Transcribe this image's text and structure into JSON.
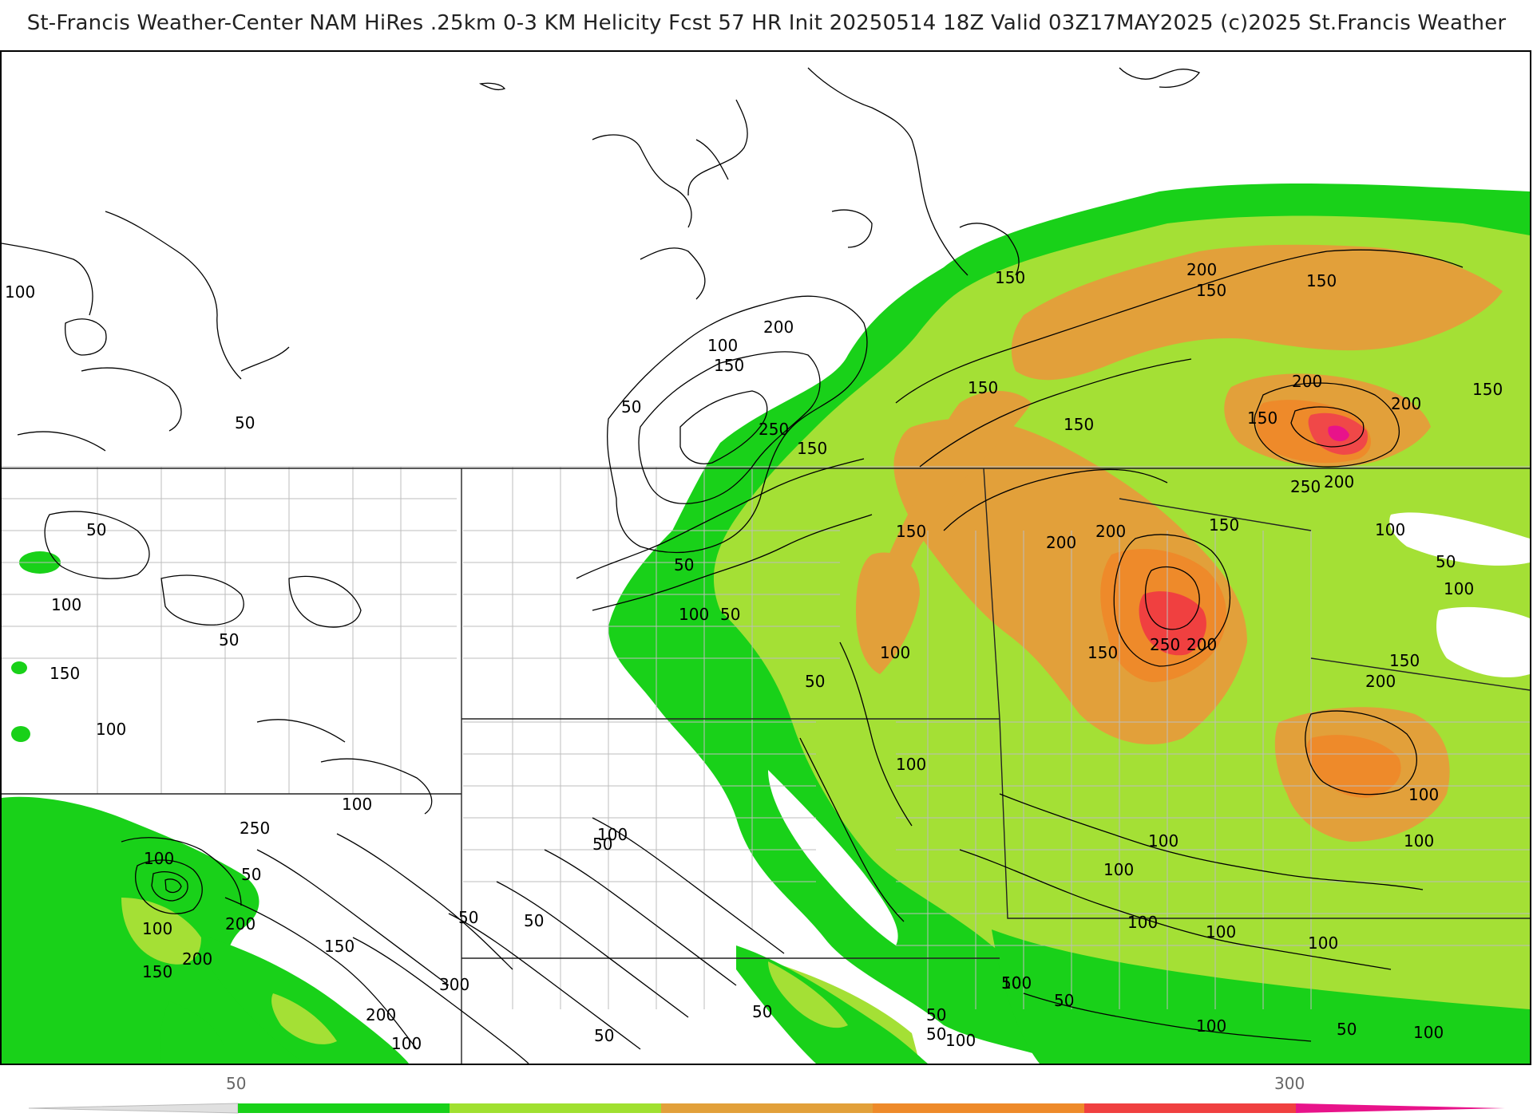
{
  "header": {
    "title": "St-Francis Weather-Center NAM HiRes .25km 0-3 KM Helicity Fcst 57 HR Init 20250514 18Z  Valid 03Z17MAY2025     (c)2025 St.Francis Weather"
  },
  "map": {
    "variable": "0-3 KM Helicity",
    "contour_labels": [
      {
        "id": "l01",
        "text": "100"
      },
      {
        "id": "l02",
        "text": "50"
      },
      {
        "id": "l03",
        "text": "100"
      },
      {
        "id": "l04",
        "text": "200"
      },
      {
        "id": "l05",
        "text": "150"
      },
      {
        "id": "l06",
        "text": "50"
      },
      {
        "id": "l07",
        "text": "250"
      },
      {
        "id": "l08",
        "text": "150"
      },
      {
        "id": "l09",
        "text": "150"
      },
      {
        "id": "l10",
        "text": "200"
      },
      {
        "id": "l11",
        "text": "150"
      },
      {
        "id": "l12",
        "text": "150"
      },
      {
        "id": "l13",
        "text": "150"
      },
      {
        "id": "l14",
        "text": "150"
      },
      {
        "id": "l15",
        "text": "200"
      },
      {
        "id": "l16",
        "text": "150"
      },
      {
        "id": "l17",
        "text": "200"
      },
      {
        "id": "l18",
        "text": "150"
      },
      {
        "id": "l19",
        "text": "250"
      },
      {
        "id": "l20",
        "text": "200"
      },
      {
        "id": "l21",
        "text": "150"
      },
      {
        "id": "l22",
        "text": "200"
      },
      {
        "id": "l23",
        "text": "150"
      },
      {
        "id": "l24",
        "text": "200"
      },
      {
        "id": "l25",
        "text": "250"
      },
      {
        "id": "l26",
        "text": "200"
      },
      {
        "id": "l27",
        "text": "100"
      },
      {
        "id": "l28",
        "text": "50"
      },
      {
        "id": "l29",
        "text": "150"
      },
      {
        "id": "l30",
        "text": "200"
      },
      {
        "id": "l31",
        "text": "150"
      },
      {
        "id": "l32",
        "text": "100"
      },
      {
        "id": "l33",
        "text": "100"
      },
      {
        "id": "l34",
        "text": "100"
      },
      {
        "id": "l35",
        "text": "100"
      },
      {
        "id": "l36",
        "text": "100"
      },
      {
        "id": "l37",
        "text": "100"
      },
      {
        "id": "l38",
        "text": "100"
      },
      {
        "id": "l39",
        "text": "50"
      },
      {
        "id": "l40",
        "text": "100"
      },
      {
        "id": "l41",
        "text": "100"
      },
      {
        "id": "l42",
        "text": "50"
      },
      {
        "id": "l43",
        "text": "100"
      },
      {
        "id": "l44",
        "text": "50"
      },
      {
        "id": "l45",
        "text": "100"
      },
      {
        "id": "l46",
        "text": "50"
      },
      {
        "id": "l47",
        "text": "50"
      },
      {
        "id": "l48",
        "text": "50"
      },
      {
        "id": "l49",
        "text": "50"
      },
      {
        "id": "l50",
        "text": "100"
      },
      {
        "id": "l51",
        "text": "50"
      },
      {
        "id": "l52",
        "text": "100"
      },
      {
        "id": "l53",
        "text": "50"
      },
      {
        "id": "l54",
        "text": "100"
      },
      {
        "id": "l55",
        "text": "50"
      },
      {
        "id": "l56",
        "text": "50"
      },
      {
        "id": "l57",
        "text": "100"
      },
      {
        "id": "l58",
        "text": "150"
      },
      {
        "id": "l59",
        "text": "100"
      },
      {
        "id": "l60",
        "text": "250"
      },
      {
        "id": "l61",
        "text": "200"
      },
      {
        "id": "l62",
        "text": "100"
      },
      {
        "id": "l63",
        "text": "150"
      },
      {
        "id": "l64",
        "text": "200"
      },
      {
        "id": "l65",
        "text": "150"
      },
      {
        "id": "l66",
        "text": "300"
      },
      {
        "id": "l67",
        "text": "200"
      },
      {
        "id": "l68",
        "text": "100"
      },
      {
        "id": "l69",
        "text": "50"
      },
      {
        "id": "l70",
        "text": "100"
      },
      {
        "id": "l71",
        "text": "50"
      },
      {
        "id": "l72",
        "text": "50"
      },
      {
        "id": "l73",
        "text": "50"
      },
      {
        "id": "l74",
        "text": "100"
      },
      {
        "id": "l75",
        "text": "100"
      },
      {
        "id": "l76",
        "text": "50"
      },
      {
        "id": "l77",
        "text": "100"
      }
    ]
  },
  "colorbar": {
    "label_low": "50",
    "label_high": "300",
    "colors": [
      "#19d119",
      "#a0e030",
      "#e2a03a",
      "#ee8a2a",
      "#f04040",
      "#e8138a"
    ]
  }
}
